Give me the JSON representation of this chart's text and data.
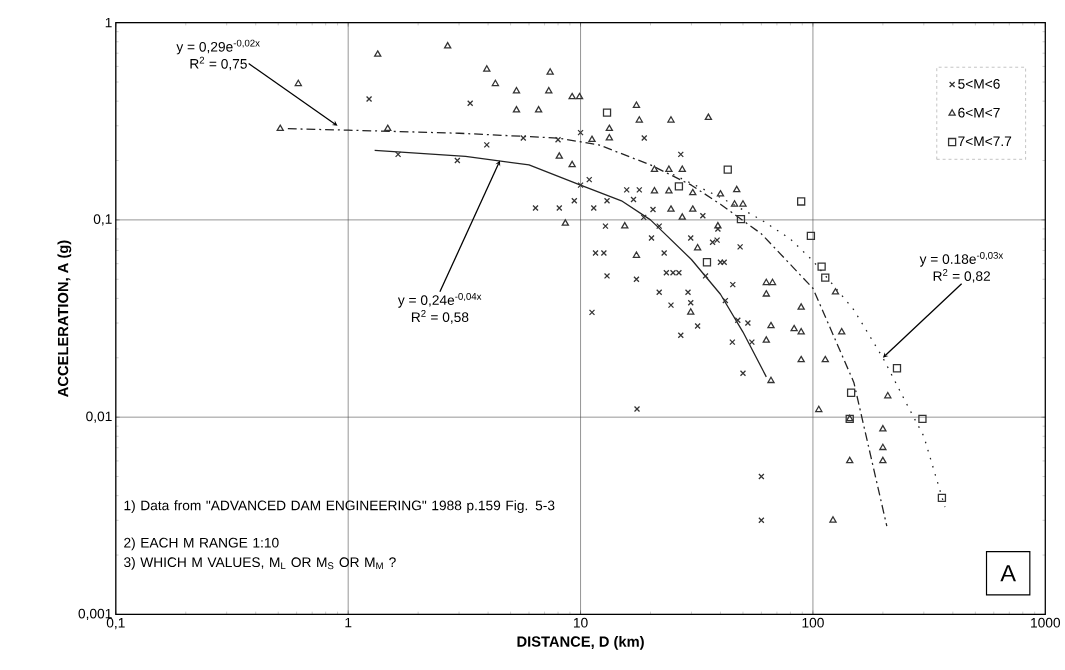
{
  "chart_data": {
    "type": "scatter",
    "xlabel": "DISTANCE, D (km)",
    "ylabel": "ACCELERATION, A (g)",
    "log": "xy",
    "grid": true,
    "legend": "top right",
    "xlim": [
      0.1,
      1000
    ],
    "ylim": [
      0.001,
      1
    ],
    "xticks": [
      {
        "value": 0.1,
        "label": "0,1"
      },
      1,
      10,
      100,
      1000
    ],
    "yticks": [
      {
        "value": 0.001,
        "label": "0,001"
      },
      {
        "value": 0.01,
        "label": "0,01"
      },
      {
        "value": 0.1,
        "label": "0,1"
      },
      1
    ],
    "series": [
      {
        "name": "5<M<6",
        "marker": "cross",
        "color": "#333333",
        "x": [
          1.23,
          3.35,
          3.95,
          5.67,
          8.0,
          10,
          18.8,
          2.95,
          1.64,
          27,
          10,
          10.9,
          6.4,
          8.1,
          9.4,
          11.4,
          13,
          15.8,
          17.9,
          16.9,
          20.5,
          18.7,
          21.8,
          12.8,
          20.2,
          29.8,
          38.7,
          33.6,
          39,
          11.6,
          12.6,
          13,
          17.4,
          22.9,
          23.4,
          25,
          26.5,
          21.8,
          29,
          29.8,
          24.5,
          34.5,
          37,
          40,
          41.5,
          48.6,
          45.2,
          42,
          11.2,
          31.9,
          27,
          45,
          54.6,
          50,
          47.5,
          52.5,
          17.5,
          60,
          60
        ],
        "values": [
          0.41,
          0.39,
          0.24,
          0.26,
          0.255,
          0.277,
          0.26,
          0.2,
          0.215,
          0.215,
          0.15,
          0.16,
          0.115,
          0.115,
          0.125,
          0.115,
          0.125,
          0.142,
          0.142,
          0.127,
          0.113,
          0.103,
          0.093,
          0.093,
          0.081,
          0.081,
          0.079,
          0.105,
          0.09,
          0.068,
          0.068,
          0.052,
          0.05,
          0.068,
          0.054,
          0.054,
          0.054,
          0.043,
          0.043,
          0.038,
          0.037,
          0.052,
          0.077,
          0.061,
          0.061,
          0.073,
          0.047,
          0.039,
          0.034,
          0.029,
          0.026,
          0.024,
          0.024,
          0.0167,
          0.031,
          0.03,
          0.011,
          0.005,
          0.003
        ]
      },
      {
        "name": "6<M<7",
        "marker": "triangle",
        "color": "#333333",
        "x": [
          0.51,
          0.61,
          1.34,
          1.48,
          2.68,
          3.95,
          4.3,
          5.3,
          7.4,
          7.3,
          5.3,
          6.6,
          9.2,
          9.9,
          17.4,
          17.9,
          24.5,
          35.5,
          13.3,
          13.3,
          11.2,
          8.1,
          9.2,
          20.8,
          24,
          27.4,
          20.8,
          24,
          24.5,
          27.4,
          30.4,
          30.4,
          40,
          47,
          46,
          50,
          31.9,
          17.4,
          8.6,
          15.5,
          39,
          29.8,
          63,
          67,
          63,
          89,
          83,
          89,
          66,
          63,
          133,
          89,
          113,
          125,
          210,
          66,
          106,
          144,
          200,
          200,
          200,
          144,
          122
        ],
        "values": [
          0.29,
          0.49,
          0.69,
          0.29,
          0.76,
          0.58,
          0.49,
          0.45,
          0.56,
          0.45,
          0.36,
          0.36,
          0.42,
          0.42,
          0.38,
          0.32,
          0.32,
          0.33,
          0.29,
          0.26,
          0.255,
          0.21,
          0.19,
          0.18,
          0.18,
          0.18,
          0.14,
          0.14,
          0.113,
          0.103,
          0.137,
          0.113,
          0.135,
          0.142,
          0.12,
          0.12,
          0.072,
          0.066,
          0.096,
          0.093,
          0.093,
          0.034,
          0.048,
          0.048,
          0.042,
          0.036,
          0.028,
          0.027,
          0.029,
          0.0245,
          0.027,
          0.0195,
          0.0195,
          0.043,
          0.0128,
          0.0153,
          0.0109,
          0.0098,
          0.0087,
          0.007,
          0.006,
          0.006,
          0.003
        ]
      },
      {
        "name": "7<M<7.7",
        "marker": "square",
        "color": "#333333",
        "x": [
          13,
          43,
          26.5,
          35,
          49,
          89,
          98,
          109,
          113,
          230,
          146,
          296,
          144,
          359
        ],
        "values": [
          0.35,
          0.18,
          0.148,
          0.061,
          0.101,
          0.124,
          0.083,
          0.058,
          0.051,
          0.0177,
          0.0133,
          0.0098,
          0.0098,
          0.0039
        ]
      },
      {
        "type": "line",
        "line_style": "solid",
        "color": "#222222",
        "x": [
          1.3,
          3.2,
          6,
          10,
          15,
          20,
          30,
          40,
          50,
          63
        ],
        "values": [
          0.225,
          0.21,
          0.19,
          0.15,
          0.125,
          0.1,
          0.063,
          0.042,
          0.027,
          0.016
        ]
      },
      {
        "type": "line",
        "line_style": "dashed",
        "color": "#222222",
        "x": [
          0.55,
          1,
          3,
          8,
          12,
          20,
          30,
          40,
          60,
          100,
          150,
          208
        ],
        "values": [
          0.29,
          0.285,
          0.275,
          0.26,
          0.24,
          0.19,
          0.15,
          0.12,
          0.085,
          0.045,
          0.015,
          0.0028
        ]
      },
      {
        "type": "line",
        "line_style": "dotted",
        "color": "#222222",
        "x": [
          25,
          40,
          60,
          80,
          100,
          150,
          200,
          250,
          300,
          370
        ],
        "values": [
          0.17,
          0.13,
          0.1,
          0.08,
          0.062,
          0.035,
          0.02,
          0.012,
          0.008,
          0.0035
        ]
      }
    ],
    "annotations": [
      {
        "text": "y = 0,29e$^{-0,02x}$",
        "x": 0.9,
        "y": 0.3
      },
      "R$^{2}$ = 0,75",
      {
        "text": "y = 0,24e$^{-0,04x}$",
        "x": 4.5,
        "y": 0.2
      },
      "R$^{2}$ = 0,58",
      {
        "text": "y = 0.18e$^{-0,03x}$",
        "x": 200,
        "y": 0.02
      },
      "R$^{2}$ = 0,82",
      "1) Data from \"ADVANCED DAM ENGINEERING\" 1988 p.159 Fig. 5-3",
      "2) EACH M RANGE 1:10",
      "3) WHICH M VALUES, M$_{L}$ OR M$_{S}$ OR M$_{M}$ ?",
      "A"
    ]
  }
}
